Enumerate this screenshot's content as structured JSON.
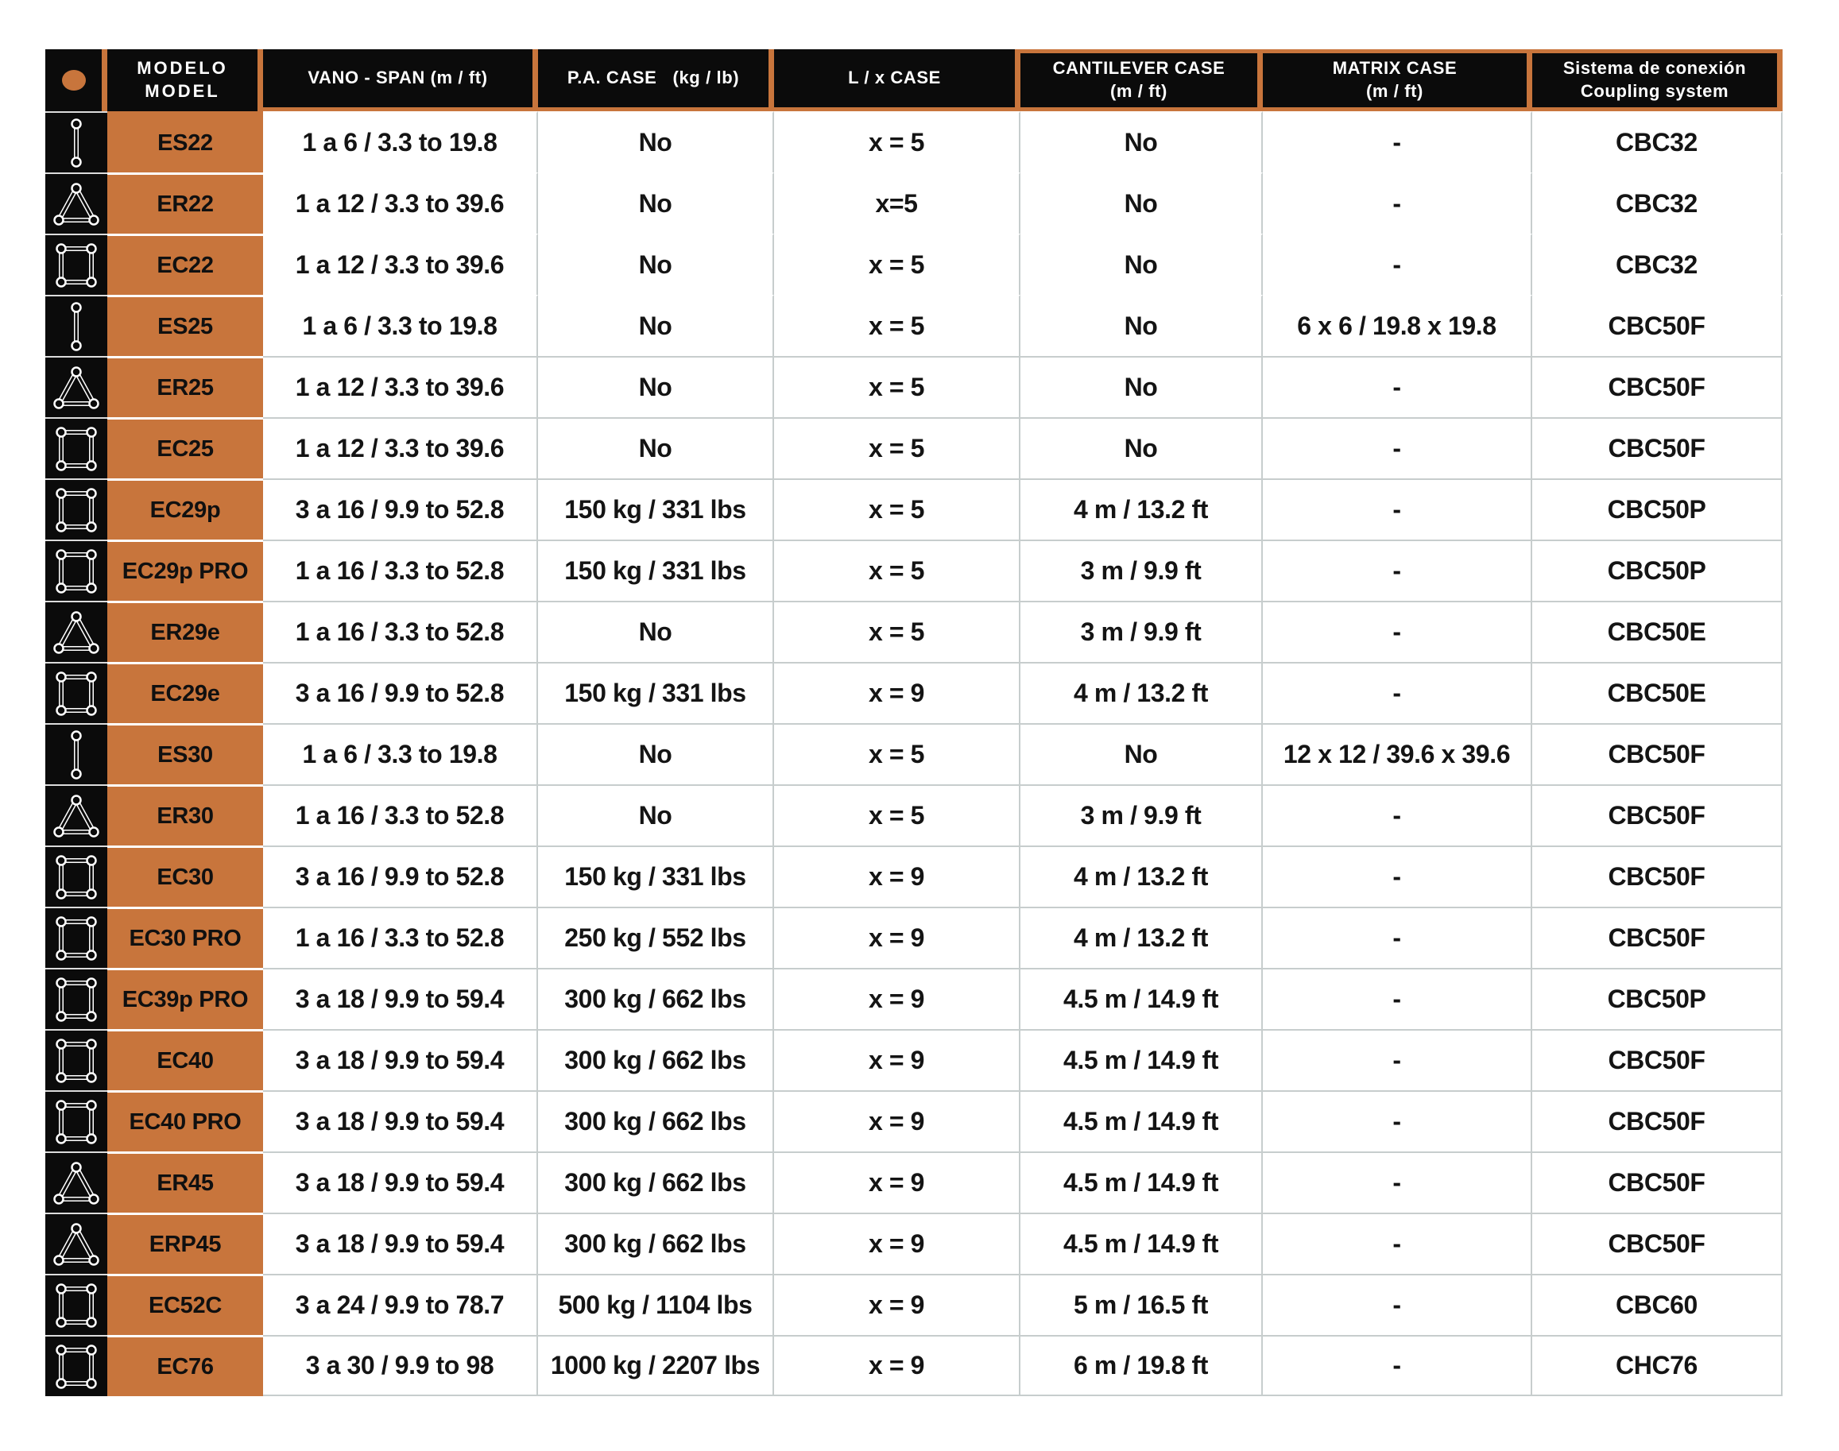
{
  "colors": {
    "orange": "#c8753c",
    "black": "#0b0b0b",
    "grid_gray": "#c7cdcd"
  },
  "header": {
    "columns": [
      {
        "line1": "MODELO",
        "line2": "MODEL"
      },
      {
        "line1": "VANO - SPAN (m / ft)",
        "line2": ""
      },
      {
        "line1": "P.A. CASE   (kg / lb)",
        "line2": ""
      },
      {
        "line1": "L / x CASE",
        "line2": ""
      },
      {
        "line1": "CANTILEVER CASE",
        "line2": "(m / ft)"
      },
      {
        "line1": "MATRIX CASE",
        "line2": "(m / ft)"
      },
      {
        "line1": "Sistema de conexión",
        "line2": "Coupling system"
      }
    ]
  },
  "rows": [
    {
      "icon": "ladder",
      "model": "ES22",
      "span": "1 a 6 / 3.3 to 19.8",
      "pa_case": "No",
      "lx_case": "x = 5",
      "cantilever": "No",
      "matrix": "-",
      "coupling": "CBC32"
    },
    {
      "icon": "triangle",
      "model": "ER22",
      "span": "1 a 12 / 3.3 to 39.6",
      "pa_case": "No",
      "lx_case": "x=5",
      "cantilever": "No",
      "matrix": "-",
      "coupling": "CBC32"
    },
    {
      "icon": "square",
      "model": "EC22",
      "span": "1 a 12 / 3.3 to 39.6",
      "pa_case": "No",
      "lx_case": "x = 5",
      "cantilever": "No",
      "matrix": "-",
      "coupling": "CBC32"
    },
    {
      "icon": "ladder",
      "model": "ES25",
      "span": "1 a 6 / 3.3 to 19.8",
      "pa_case": "No",
      "lx_case": "x = 5",
      "cantilever": "No",
      "matrix": "6 x 6 / 19.8 x 19.8",
      "coupling": "CBC50F"
    },
    {
      "icon": "triangle",
      "model": "ER25",
      "span": "1 a 12 / 3.3 to 39.6",
      "pa_case": "No",
      "lx_case": "x = 5",
      "cantilever": "No",
      "matrix": "-",
      "coupling": "CBC50F"
    },
    {
      "icon": "square",
      "model": "EC25",
      "span": "1 a 12 / 3.3 to 39.6",
      "pa_case": "No",
      "lx_case": "x = 5",
      "cantilever": "No",
      "matrix": "-",
      "coupling": "CBC50F"
    },
    {
      "icon": "square",
      "model": "EC29p",
      "span": "3 a 16 / 9.9 to 52.8",
      "pa_case": "150 kg / 331 lbs",
      "lx_case": "x = 5",
      "cantilever": "4 m / 13.2 ft",
      "matrix": "-",
      "coupling": "CBC50P"
    },
    {
      "icon": "square",
      "model": "EC29p PRO",
      "span": "1 a 16 / 3.3 to 52.8",
      "pa_case": "150 kg / 331 lbs",
      "lx_case": "x = 5",
      "cantilever": "3 m / 9.9 ft",
      "matrix": "-",
      "coupling": "CBC50P"
    },
    {
      "icon": "triangle",
      "model": "ER29e",
      "span": "1 a 16 / 3.3 to 52.8",
      "pa_case": "No",
      "lx_case": "x = 5",
      "cantilever": "3 m / 9.9 ft",
      "matrix": "-",
      "coupling": "CBC50E"
    },
    {
      "icon": "square",
      "model": "EC29e",
      "span": "3 a 16 / 9.9 to 52.8",
      "pa_case": "150 kg / 331 lbs",
      "lx_case": "x = 9",
      "cantilever": "4 m / 13.2 ft",
      "matrix": "-",
      "coupling": "CBC50E"
    },
    {
      "icon": "ladder",
      "model": "ES30",
      "span": "1 a 6 / 3.3 to 19.8",
      "pa_case": "No",
      "lx_case": "x = 5",
      "cantilever": "No",
      "matrix": "12 x 12 / 39.6 x 39.6",
      "coupling": "CBC50F"
    },
    {
      "icon": "triangle",
      "model": "ER30",
      "span": "1 a 16 / 3.3 to 52.8",
      "pa_case": "No",
      "lx_case": "x = 5",
      "cantilever": "3 m / 9.9 ft",
      "matrix": "-",
      "coupling": "CBC50F"
    },
    {
      "icon": "square",
      "model": "EC30",
      "span": "3 a 16 / 9.9 to 52.8",
      "pa_case": "150 kg / 331 lbs",
      "lx_case": "x = 9",
      "cantilever": "4 m / 13.2 ft",
      "matrix": "-",
      "coupling": "CBC50F"
    },
    {
      "icon": "square",
      "model": "EC30 PRO",
      "span": "1 a 16 / 3.3 to 52.8",
      "pa_case": "250 kg / 552 lbs",
      "lx_case": "x = 9",
      "cantilever": "4 m / 13.2 ft",
      "matrix": "-",
      "coupling": "CBC50F"
    },
    {
      "icon": "square",
      "model": "EC39p PRO",
      "span": "3 a 18 / 9.9 to 59.4",
      "pa_case": "300 kg / 662 lbs",
      "lx_case": "x = 9",
      "cantilever": "4.5 m / 14.9 ft",
      "matrix": "-",
      "coupling": "CBC50P"
    },
    {
      "icon": "square",
      "model": "EC40",
      "span": "3 a 18 / 9.9 to 59.4",
      "pa_case": "300 kg / 662 lbs",
      "lx_case": "x = 9",
      "cantilever": "4.5 m / 14.9 ft",
      "matrix": "-",
      "coupling": "CBC50F"
    },
    {
      "icon": "square",
      "model": "EC40 PRO",
      "span": "3 a 18 / 9.9 to 59.4",
      "pa_case": "300 kg / 662 lbs",
      "lx_case": "x = 9",
      "cantilever": "4.5 m / 14.9 ft",
      "matrix": "-",
      "coupling": "CBC50F"
    },
    {
      "icon": "triangle",
      "model": "ER45",
      "span": "3 a 18 / 9.9 to 59.4",
      "pa_case": "300 kg / 662 lbs",
      "lx_case": "x = 9",
      "cantilever": "4.5 m / 14.9 ft",
      "matrix": "-",
      "coupling": "CBC50F"
    },
    {
      "icon": "triangle",
      "model": "ERP45",
      "span": "3 a 18 / 9.9 to 59.4",
      "pa_case": "300 kg / 662 lbs",
      "lx_case": "x = 9",
      "cantilever": "4.5 m / 14.9 ft",
      "matrix": "-",
      "coupling": "CBC50F"
    },
    {
      "icon": "square",
      "model": "EC52C",
      "span": "3 a 24 / 9.9 to 78.7",
      "pa_case": "500 kg / 1104 lbs",
      "lx_case": "x = 9",
      "cantilever": "5 m / 16.5 ft",
      "matrix": "-",
      "coupling": "CBC60"
    },
    {
      "icon": "square",
      "model": "EC76",
      "span": "3 a 30 / 9.9 to 98",
      "pa_case": "1000 kg / 2207 lbs",
      "lx_case": "x = 9",
      "cantilever": "6 m / 19.8 ft",
      "matrix": "-",
      "coupling": "CHC76"
    }
  ]
}
